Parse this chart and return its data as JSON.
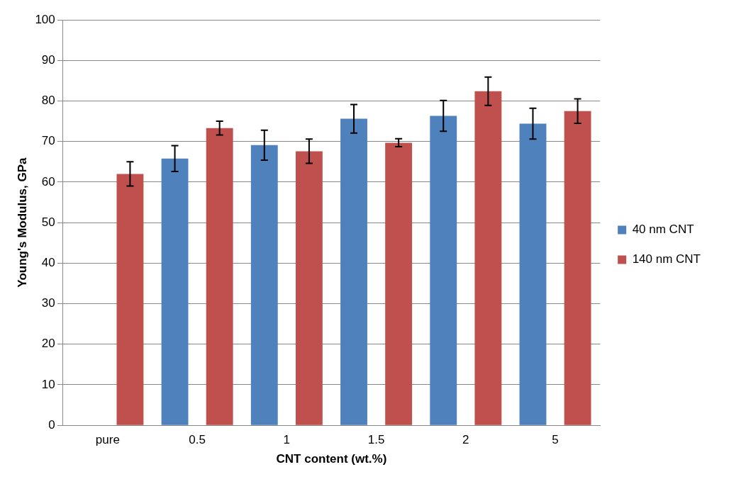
{
  "chart_data": {
    "type": "bar",
    "xlabel": "CNT content (wt.%)",
    "ylabel": "Young's Modulus, GPa",
    "categories": [
      "pure",
      "0.5",
      "1",
      "1.5",
      "2",
      "5"
    ],
    "series": [
      {
        "name": "40 nm CNT",
        "color": "#4f81bd",
        "values": [
          null,
          65.8,
          69.1,
          75.6,
          76.3,
          74.4
        ],
        "errors": [
          null,
          3.2,
          3.7,
          3.5,
          3.8,
          3.8
        ]
      },
      {
        "name": "140 nm CNT",
        "color": "#c0504d",
        "values": [
          62.0,
          73.3,
          67.6,
          69.7,
          82.4,
          77.5
        ],
        "errors": [
          3,
          1.7,
          3,
          1,
          3.5,
          3
        ]
      }
    ],
    "ylim": [
      0,
      100
    ],
    "yticks": [
      0,
      10,
      20,
      30,
      40,
      50,
      60,
      70,
      80,
      90,
      100
    ],
    "grid": "y",
    "legend": "right"
  }
}
